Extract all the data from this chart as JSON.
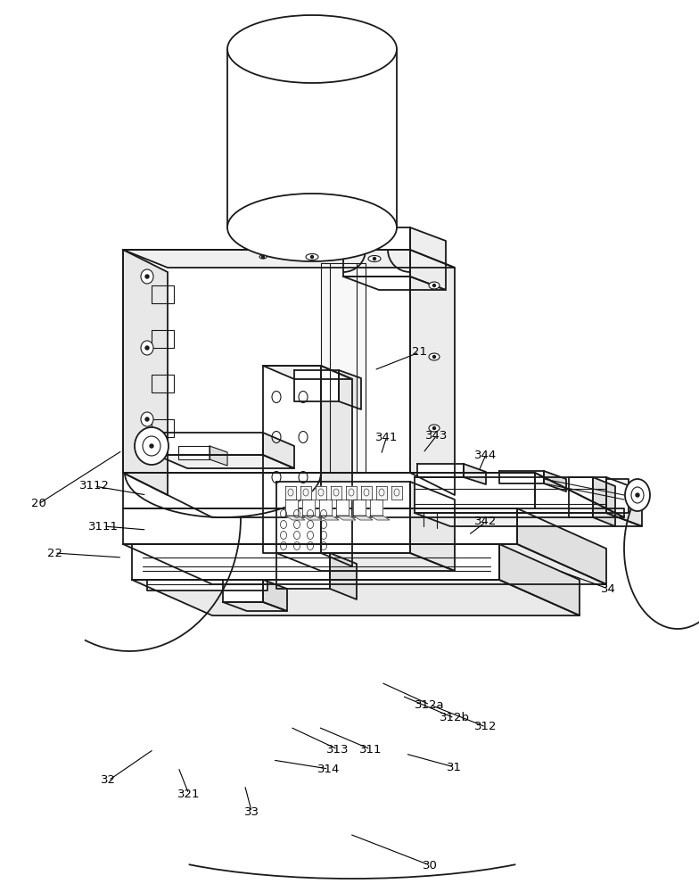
{
  "background_color": "#ffffff",
  "line_color": "#1a1a1a",
  "figsize": [
    7.84,
    10.0
  ],
  "dpi": 100,
  "labels": {
    "20": [
      0.055,
      0.565,
      0.175,
      0.505
    ],
    "21": [
      0.6,
      0.395,
      0.535,
      0.415
    ],
    "22": [
      0.078,
      0.62,
      0.175,
      0.625
    ],
    "30": [
      0.615,
      0.97,
      0.5,
      0.935
    ],
    "31": [
      0.65,
      0.86,
      0.58,
      0.845
    ],
    "32": [
      0.155,
      0.875,
      0.22,
      0.84
    ],
    "33": [
      0.36,
      0.91,
      0.35,
      0.88
    ],
    "34": [
      0.87,
      0.66,
      0.8,
      0.64
    ],
    "311": [
      0.53,
      0.84,
      0.455,
      0.815
    ],
    "312": [
      0.695,
      0.815,
      0.615,
      0.79
    ],
    "312a": [
      0.615,
      0.79,
      0.545,
      0.765
    ],
    "312b": [
      0.65,
      0.805,
      0.575,
      0.78
    ],
    "313": [
      0.483,
      0.84,
      0.415,
      0.815
    ],
    "314": [
      0.47,
      0.862,
      0.39,
      0.852
    ],
    "321": [
      0.27,
      0.89,
      0.255,
      0.86
    ],
    "341": [
      0.553,
      0.49,
      0.545,
      0.51
    ],
    "342": [
      0.695,
      0.585,
      0.67,
      0.6
    ],
    "343": [
      0.625,
      0.488,
      0.605,
      0.508
    ],
    "344": [
      0.695,
      0.51,
      0.685,
      0.528
    ],
    "3111": [
      0.148,
      0.59,
      0.21,
      0.594
    ],
    "3112": [
      0.135,
      0.545,
      0.21,
      0.555
    ]
  }
}
